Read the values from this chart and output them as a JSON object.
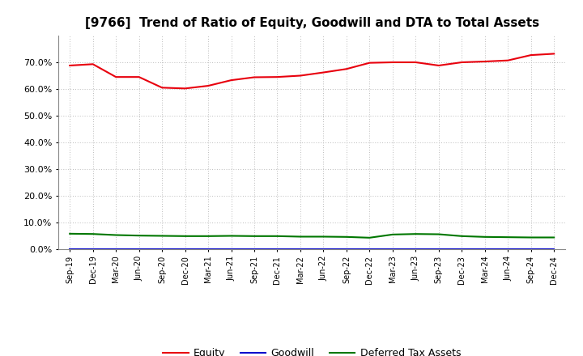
{
  "title": "[9766]  Trend of Ratio of Equity, Goodwill and DTA to Total Assets",
  "x_labels": [
    "Sep-19",
    "Dec-19",
    "Mar-20",
    "Jun-20",
    "Sep-20",
    "Dec-20",
    "Mar-21",
    "Jun-21",
    "Sep-21",
    "Dec-21",
    "Mar-22",
    "Jun-22",
    "Sep-22",
    "Dec-22",
    "Mar-23",
    "Jun-23",
    "Sep-23",
    "Dec-23",
    "Mar-24",
    "Jun-24",
    "Sep-24",
    "Dec-24"
  ],
  "equity": [
    0.688,
    0.693,
    0.645,
    0.645,
    0.605,
    0.602,
    0.612,
    0.633,
    0.644,
    0.645,
    0.65,
    0.662,
    0.675,
    0.698,
    0.7,
    0.7,
    0.688,
    0.7,
    0.703,
    0.707,
    0.727,
    0.732
  ],
  "goodwill": [
    0.001,
    0.001,
    0.001,
    0.001,
    0.001,
    0.001,
    0.001,
    0.001,
    0.001,
    0.001,
    0.001,
    0.001,
    0.001,
    0.001,
    0.001,
    0.001,
    0.001,
    0.001,
    0.001,
    0.001,
    0.001,
    0.001
  ],
  "dta": [
    0.058,
    0.057,
    0.053,
    0.051,
    0.05,
    0.049,
    0.049,
    0.05,
    0.049,
    0.049,
    0.047,
    0.047,
    0.046,
    0.043,
    0.055,
    0.057,
    0.056,
    0.049,
    0.046,
    0.045,
    0.044,
    0.044
  ],
  "equity_color": "#e8000d",
  "goodwill_color": "#0000cc",
  "dta_color": "#007700",
  "bg_color": "#ffffff",
  "plot_bg_color": "#ffffff",
  "grid_color": "#bbbbbb",
  "ylim": [
    0.0,
    0.8
  ],
  "yticks": [
    0.0,
    0.1,
    0.2,
    0.3,
    0.4,
    0.5,
    0.6,
    0.7
  ],
  "title_fontsize": 11,
  "legend_labels": [
    "Equity",
    "Goodwill",
    "Deferred Tax Assets"
  ]
}
